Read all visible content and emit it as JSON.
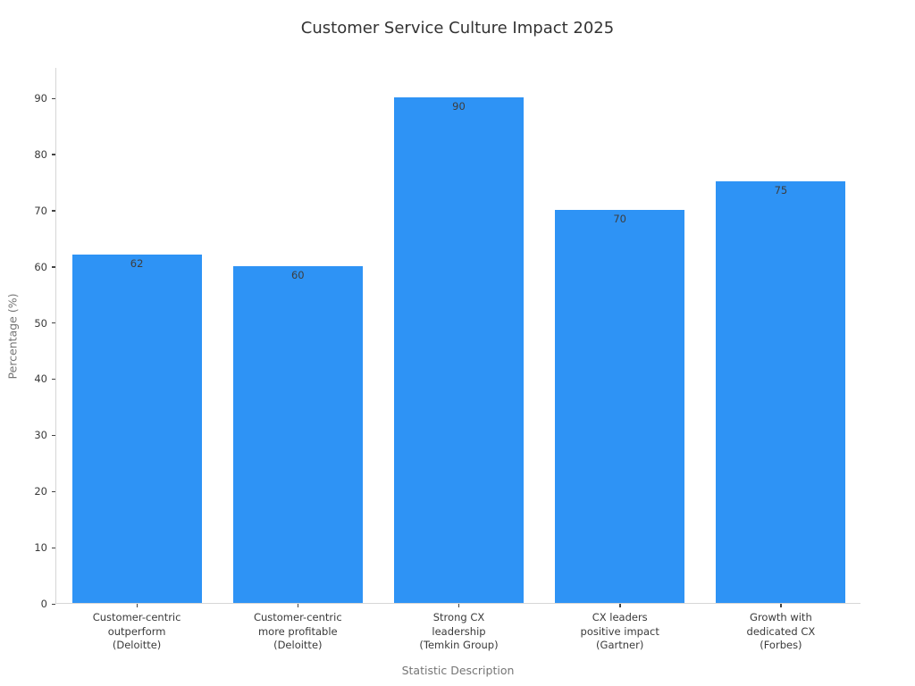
{
  "title": "Customer Service Culture Impact 2025",
  "chart_data": {
    "type": "bar",
    "title": "Customer Service Culture Impact 2025",
    "xlabel": "Statistic Description",
    "ylabel": "Percentage (%)",
    "categories": [
      [
        "Customer-centric",
        "outperform",
        "(Deloitte)"
      ],
      [
        "Customer-centric",
        "more profitable",
        "(Deloitte)"
      ],
      [
        "Strong CX",
        "leadership",
        "(Temkin Group)"
      ],
      [
        "CX leaders",
        "positive impact",
        "(Gartner)"
      ],
      [
        "Growth with",
        "dedicated CX",
        "(Forbes)"
      ]
    ],
    "values": [
      62,
      60,
      90,
      70,
      75
    ],
    "value_labels": [
      "62",
      "60",
      "90",
      "70",
      "75"
    ],
    "yticks": [
      0,
      10,
      20,
      30,
      40,
      50,
      60,
      70,
      80,
      90
    ],
    "ylim": [
      0,
      95.4
    ],
    "grid": false,
    "legend": "none",
    "bar_color": "#2E93F5",
    "value_label_color": "#3d3d3d",
    "spine_color": "#d6d6d6",
    "tick_color": "#444444"
  }
}
